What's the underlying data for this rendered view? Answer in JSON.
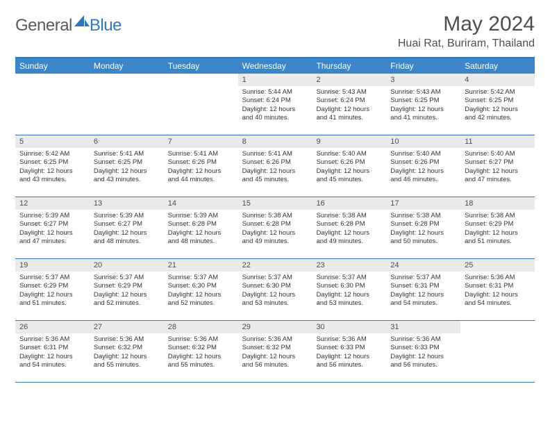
{
  "brand": {
    "text1": "General",
    "text2": "Blue"
  },
  "title": "May 2024",
  "location": "Huai Rat, Buriram, Thailand",
  "colors": {
    "header_bar": "#3b86c8",
    "border": "#2f78bd",
    "daynum_bg": "#e9eaeb",
    "page_bg": "#ffffff",
    "text_dark": "#4a4f52",
    "text_body": "#333333"
  },
  "daysOfWeek": [
    "Sunday",
    "Monday",
    "Tuesday",
    "Wednesday",
    "Thursday",
    "Friday",
    "Saturday"
  ],
  "weeks": [
    [
      {
        "n": "",
        "sr": "",
        "ss": "",
        "dl": ""
      },
      {
        "n": "",
        "sr": "",
        "ss": "",
        "dl": ""
      },
      {
        "n": "",
        "sr": "",
        "ss": "",
        "dl": ""
      },
      {
        "n": "1",
        "sr": "Sunrise: 5:44 AM",
        "ss": "Sunset: 6:24 PM",
        "dl": "Daylight: 12 hours and 40 minutes."
      },
      {
        "n": "2",
        "sr": "Sunrise: 5:43 AM",
        "ss": "Sunset: 6:24 PM",
        "dl": "Daylight: 12 hours and 41 minutes."
      },
      {
        "n": "3",
        "sr": "Sunrise: 5:43 AM",
        "ss": "Sunset: 6:25 PM",
        "dl": "Daylight: 12 hours and 41 minutes."
      },
      {
        "n": "4",
        "sr": "Sunrise: 5:42 AM",
        "ss": "Sunset: 6:25 PM",
        "dl": "Daylight: 12 hours and 42 minutes."
      }
    ],
    [
      {
        "n": "5",
        "sr": "Sunrise: 5:42 AM",
        "ss": "Sunset: 6:25 PM",
        "dl": "Daylight: 12 hours and 43 minutes."
      },
      {
        "n": "6",
        "sr": "Sunrise: 5:41 AM",
        "ss": "Sunset: 6:25 PM",
        "dl": "Daylight: 12 hours and 43 minutes."
      },
      {
        "n": "7",
        "sr": "Sunrise: 5:41 AM",
        "ss": "Sunset: 6:26 PM",
        "dl": "Daylight: 12 hours and 44 minutes."
      },
      {
        "n": "8",
        "sr": "Sunrise: 5:41 AM",
        "ss": "Sunset: 6:26 PM",
        "dl": "Daylight: 12 hours and 45 minutes."
      },
      {
        "n": "9",
        "sr": "Sunrise: 5:40 AM",
        "ss": "Sunset: 6:26 PM",
        "dl": "Daylight: 12 hours and 45 minutes."
      },
      {
        "n": "10",
        "sr": "Sunrise: 5:40 AM",
        "ss": "Sunset: 6:26 PM",
        "dl": "Daylight: 12 hours and 46 minutes."
      },
      {
        "n": "11",
        "sr": "Sunrise: 5:40 AM",
        "ss": "Sunset: 6:27 PM",
        "dl": "Daylight: 12 hours and 47 minutes."
      }
    ],
    [
      {
        "n": "12",
        "sr": "Sunrise: 5:39 AM",
        "ss": "Sunset: 6:27 PM",
        "dl": "Daylight: 12 hours and 47 minutes."
      },
      {
        "n": "13",
        "sr": "Sunrise: 5:39 AM",
        "ss": "Sunset: 6:27 PM",
        "dl": "Daylight: 12 hours and 48 minutes."
      },
      {
        "n": "14",
        "sr": "Sunrise: 5:39 AM",
        "ss": "Sunset: 6:28 PM",
        "dl": "Daylight: 12 hours and 48 minutes."
      },
      {
        "n": "15",
        "sr": "Sunrise: 5:38 AM",
        "ss": "Sunset: 6:28 PM",
        "dl": "Daylight: 12 hours and 49 minutes."
      },
      {
        "n": "16",
        "sr": "Sunrise: 5:38 AM",
        "ss": "Sunset: 6:28 PM",
        "dl": "Daylight: 12 hours and 49 minutes."
      },
      {
        "n": "17",
        "sr": "Sunrise: 5:38 AM",
        "ss": "Sunset: 6:28 PM",
        "dl": "Daylight: 12 hours and 50 minutes."
      },
      {
        "n": "18",
        "sr": "Sunrise: 5:38 AM",
        "ss": "Sunset: 6:29 PM",
        "dl": "Daylight: 12 hours and 51 minutes."
      }
    ],
    [
      {
        "n": "19",
        "sr": "Sunrise: 5:37 AM",
        "ss": "Sunset: 6:29 PM",
        "dl": "Daylight: 12 hours and 51 minutes."
      },
      {
        "n": "20",
        "sr": "Sunrise: 5:37 AM",
        "ss": "Sunset: 6:29 PM",
        "dl": "Daylight: 12 hours and 52 minutes."
      },
      {
        "n": "21",
        "sr": "Sunrise: 5:37 AM",
        "ss": "Sunset: 6:30 PM",
        "dl": "Daylight: 12 hours and 52 minutes."
      },
      {
        "n": "22",
        "sr": "Sunrise: 5:37 AM",
        "ss": "Sunset: 6:30 PM",
        "dl": "Daylight: 12 hours and 53 minutes."
      },
      {
        "n": "23",
        "sr": "Sunrise: 5:37 AM",
        "ss": "Sunset: 6:30 PM",
        "dl": "Daylight: 12 hours and 53 minutes."
      },
      {
        "n": "24",
        "sr": "Sunrise: 5:37 AM",
        "ss": "Sunset: 6:31 PM",
        "dl": "Daylight: 12 hours and 54 minutes."
      },
      {
        "n": "25",
        "sr": "Sunrise: 5:36 AM",
        "ss": "Sunset: 6:31 PM",
        "dl": "Daylight: 12 hours and 54 minutes."
      }
    ],
    [
      {
        "n": "26",
        "sr": "Sunrise: 5:36 AM",
        "ss": "Sunset: 6:31 PM",
        "dl": "Daylight: 12 hours and 54 minutes."
      },
      {
        "n": "27",
        "sr": "Sunrise: 5:36 AM",
        "ss": "Sunset: 6:32 PM",
        "dl": "Daylight: 12 hours and 55 minutes."
      },
      {
        "n": "28",
        "sr": "Sunrise: 5:36 AM",
        "ss": "Sunset: 6:32 PM",
        "dl": "Daylight: 12 hours and 55 minutes."
      },
      {
        "n": "29",
        "sr": "Sunrise: 5:36 AM",
        "ss": "Sunset: 6:32 PM",
        "dl": "Daylight: 12 hours and 56 minutes."
      },
      {
        "n": "30",
        "sr": "Sunrise: 5:36 AM",
        "ss": "Sunset: 6:33 PM",
        "dl": "Daylight: 12 hours and 56 minutes."
      },
      {
        "n": "31",
        "sr": "Sunrise: 5:36 AM",
        "ss": "Sunset: 6:33 PM",
        "dl": "Daylight: 12 hours and 56 minutes."
      },
      {
        "n": "",
        "sr": "",
        "ss": "",
        "dl": ""
      }
    ]
  ]
}
